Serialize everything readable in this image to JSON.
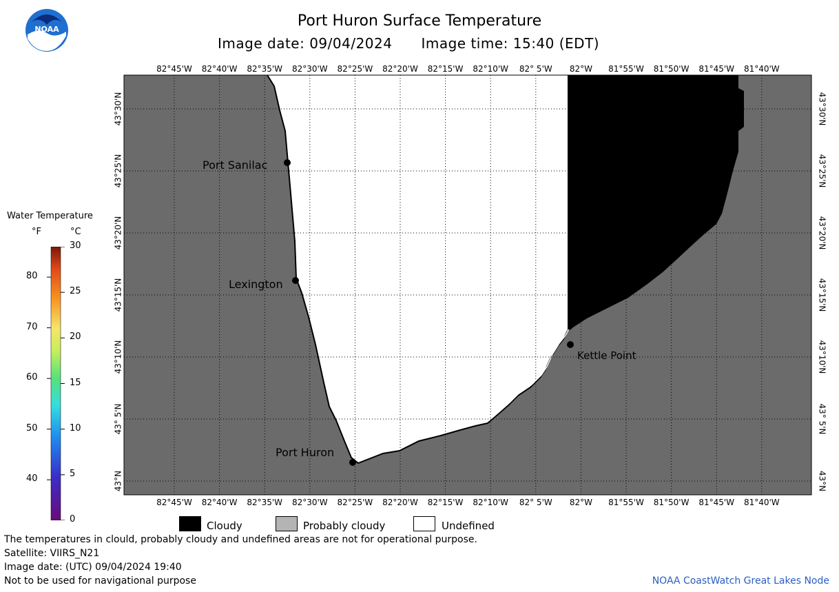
{
  "header": {
    "title": "Port Huron Surface Temperature",
    "image_date": "Image date: 09/04/2024",
    "image_time": "Image time: 15:40 (EDT)"
  },
  "logo": {
    "label": "NOAA",
    "icon": "noaa-logo-icon"
  },
  "colors": {
    "land": "#6b6b6b",
    "cloudy": "#000000",
    "probably_cloudy": "#b4b4b4",
    "undefined": "#ffffff",
    "credit": "#2a5ec2"
  },
  "legend": {
    "title": "Water Temperature",
    "unit_f": "°F",
    "unit_c": "°C",
    "fahrenheit_ticks": [
      "80",
      "70",
      "60",
      "50",
      "40"
    ],
    "celsius_ticks": [
      "30",
      "25",
      "20",
      "15",
      "10",
      "5",
      "0"
    ]
  },
  "map": {
    "lon_labels": [
      "82°45'W",
      "82°40'W",
      "82°35'W",
      "82°30'W",
      "82°25'W",
      "82°20'W",
      "82°15'W",
      "82°10'W",
      "82° 5'W",
      "82°W",
      "81°55'W",
      "81°50'W",
      "81°45'W",
      "81°40'W"
    ],
    "lat_labels": [
      "43°30'N",
      "43°25'N",
      "43°20'N",
      "43°15'N",
      "43°10'N",
      "43° 5'N",
      "43°N"
    ],
    "places": [
      "Port Sanilac",
      "Lexington",
      "Port Huron",
      "Kettle Point"
    ]
  },
  "bottom_legend": {
    "cloudy": "Cloudy",
    "probably_cloudy": "Probably cloudy",
    "undefined": "Undefined"
  },
  "notes": {
    "disclaimer": "The temperatures in clould, probably cloudy and undefined areas are not for operational purpose.",
    "satellite": "Satellite: VIIRS_N21",
    "utc_date": "Image date: (UTC) 09/04/2024  19:40",
    "nav": "Not to be used for navigational purpose",
    "credit": "NOAA CoastWatch Great Lakes Node"
  }
}
